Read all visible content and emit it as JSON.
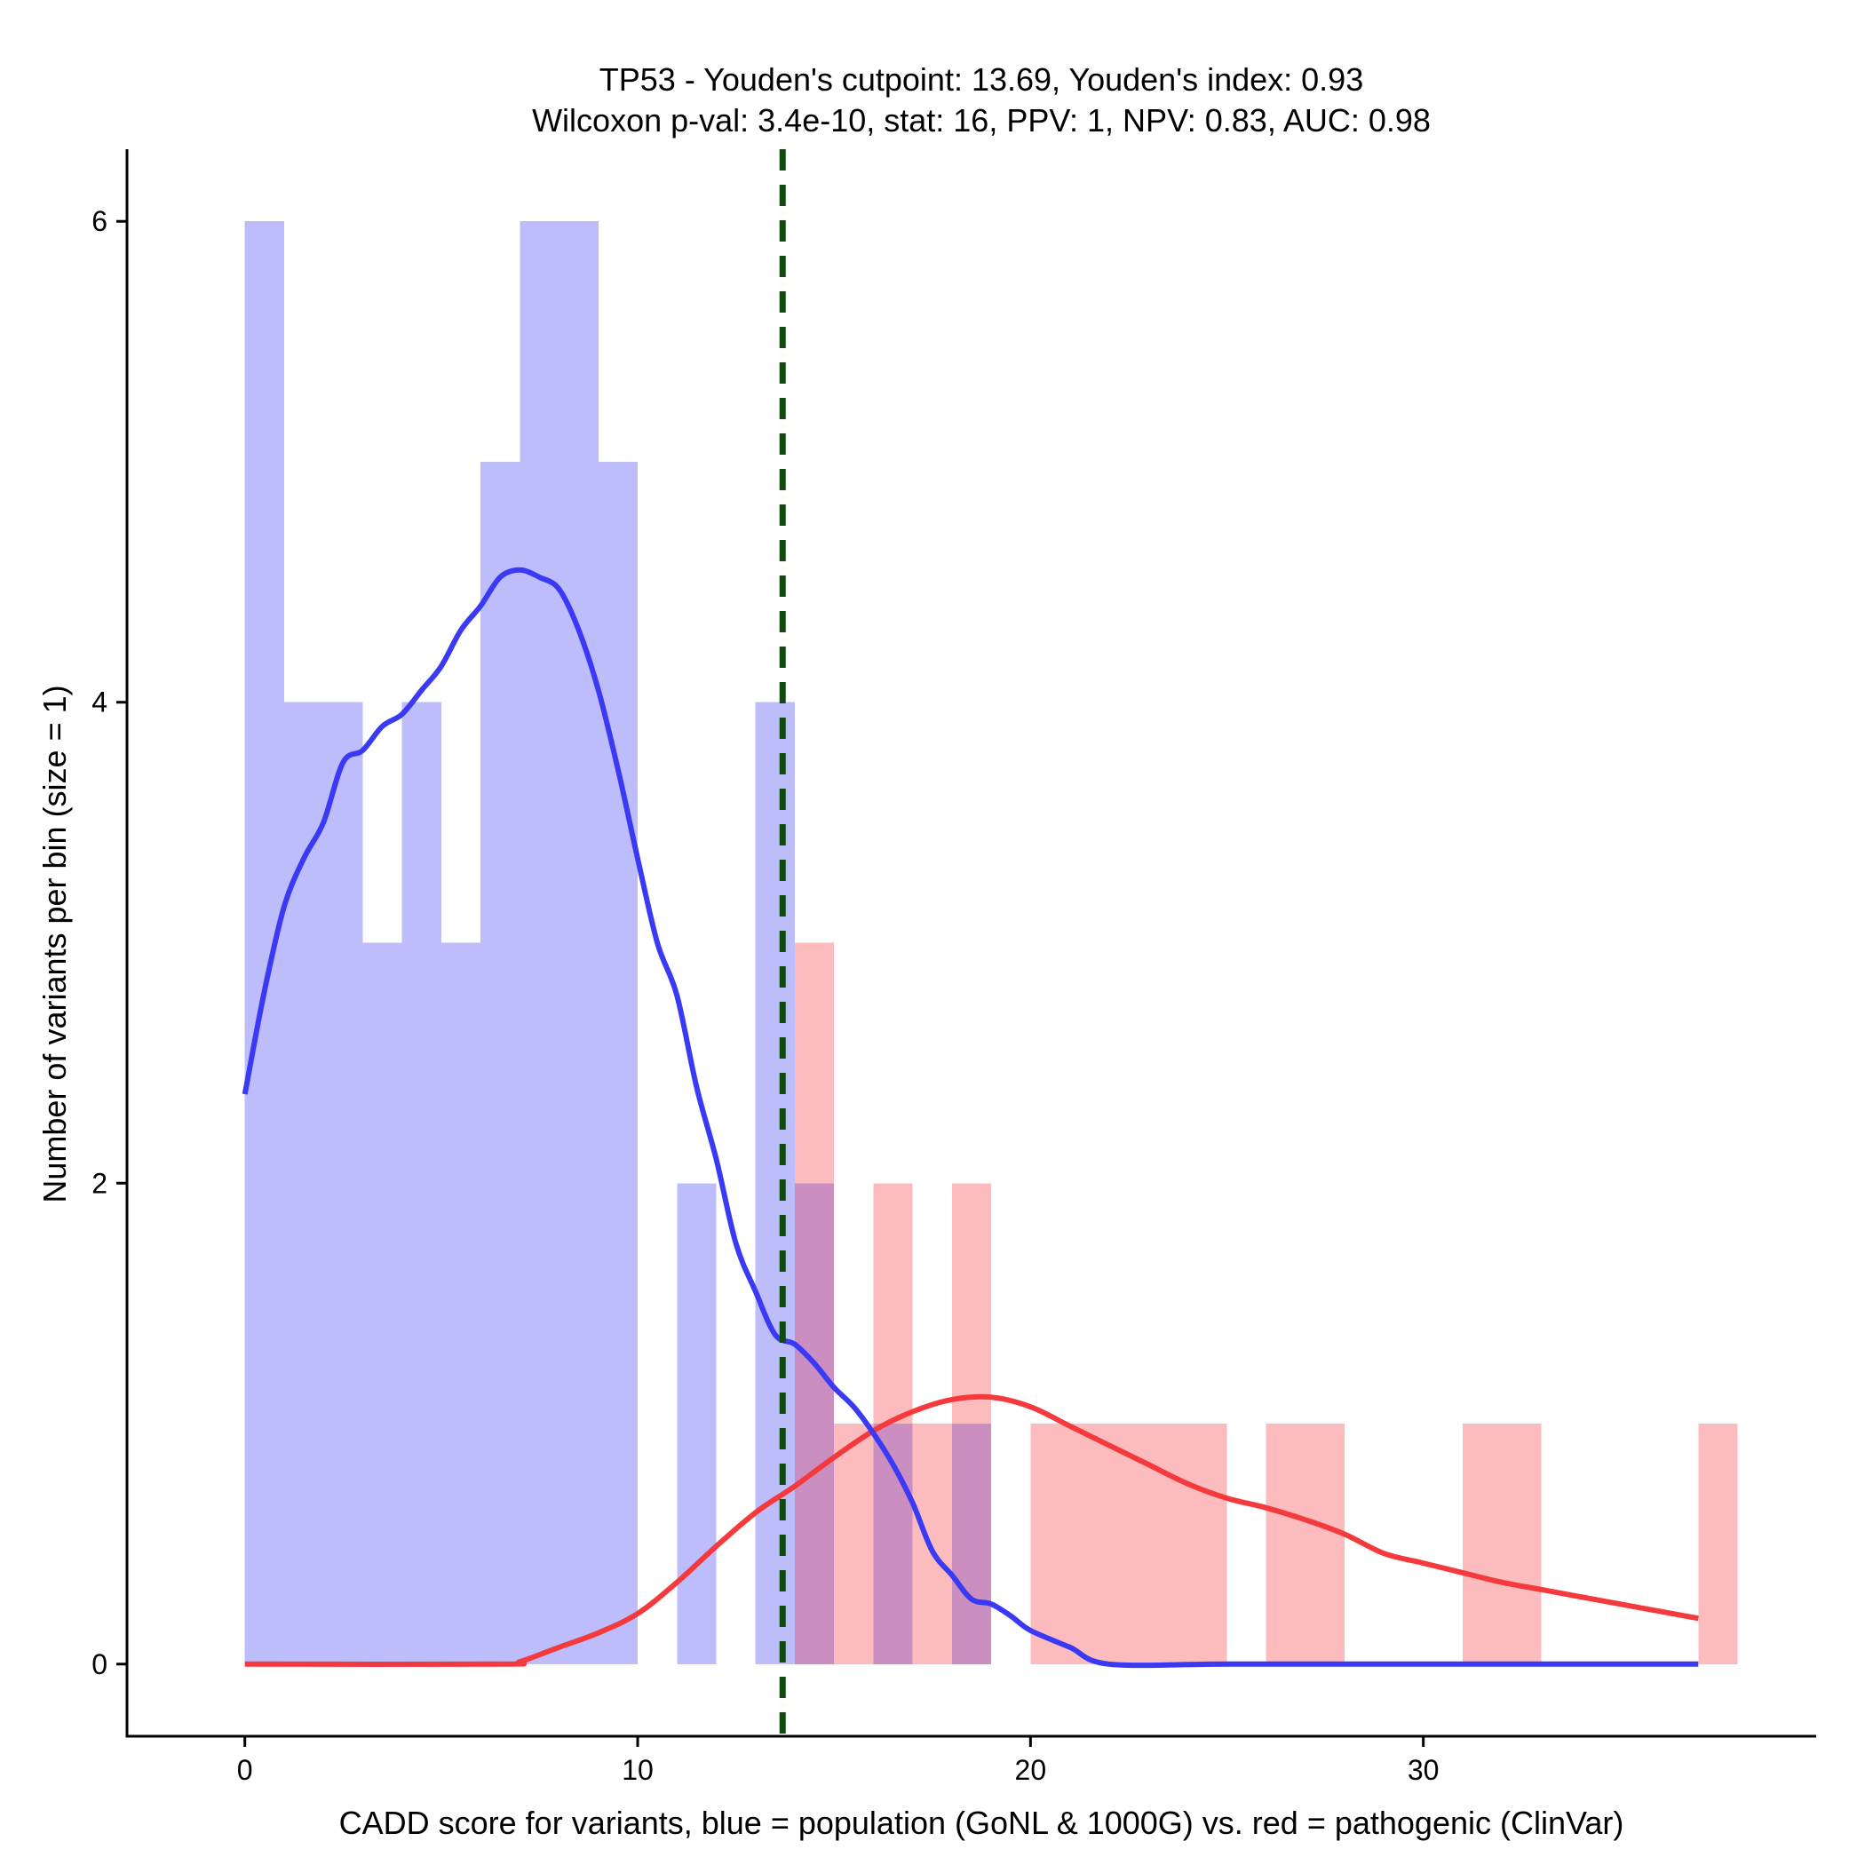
{
  "colors": {
    "population_fill": "#bdbdfb",
    "pathogenic_fill": "#fcbcbd",
    "overlap_fill": "#cb8ec1",
    "population_line": "#3a3af5",
    "pathogenic_line": "#f53a3d",
    "cutpoint_line": "#0f4b0f",
    "axis": "#000000"
  },
  "chart_data": {
    "type": "histogram",
    "title_line1": "TP53 - Youden's cutpoint: 13.69, Youden's index: 0.93",
    "title_line2": "Wilcoxon p-val: 3.4e-10, stat: 16, PPV: 1, NPV: 0.83, AUC: 0.98",
    "xlabel": "CADD score for variants, blue = population (GoNL & 1000G) vs. red = pathogenic (ClinVar)",
    "ylabel": "Number of variants per bin (size = 1)",
    "xlim": [
      -3,
      40
    ],
    "ylim": [
      -0.3,
      6.3
    ],
    "xticks": [
      0,
      10,
      20,
      30
    ],
    "yticks": [
      0,
      2,
      4,
      6
    ],
    "bin_size": 1,
    "cutpoint": 13.69,
    "series": [
      {
        "name": "population (GoNL & 1000G)",
        "bins": [
          {
            "x0": 0,
            "x1": 1,
            "count": 6
          },
          {
            "x0": 1,
            "x1": 2,
            "count": 4
          },
          {
            "x0": 2,
            "x1": 3,
            "count": 4
          },
          {
            "x0": 3,
            "x1": 4,
            "count": 3
          },
          {
            "x0": 4,
            "x1": 5,
            "count": 4
          },
          {
            "x0": 5,
            "x1": 6,
            "count": 3
          },
          {
            "x0": 6,
            "x1": 7,
            "count": 5
          },
          {
            "x0": 7,
            "x1": 8,
            "count": 6
          },
          {
            "x0": 8,
            "x1": 9,
            "count": 6
          },
          {
            "x0": 9,
            "x1": 10,
            "count": 5
          },
          {
            "x0": 11,
            "x1": 12,
            "count": 2
          },
          {
            "x0": 13,
            "x1": 14,
            "count": 4
          },
          {
            "x0": 14,
            "x1": 15,
            "count": 2
          },
          {
            "x0": 16,
            "x1": 17,
            "count": 1
          },
          {
            "x0": 18,
            "x1": 19,
            "count": 1
          }
        ],
        "density": [
          [
            0,
            2.37
          ],
          [
            0.5,
            2.8
          ],
          [
            1,
            3.15
          ],
          [
            1.5,
            3.35
          ],
          [
            2,
            3.5
          ],
          [
            2.5,
            3.75
          ],
          [
            3,
            3.8
          ],
          [
            3.5,
            3.9
          ],
          [
            4,
            3.95
          ],
          [
            4.5,
            4.05
          ],
          [
            5,
            4.15
          ],
          [
            5.5,
            4.3
          ],
          [
            6,
            4.4
          ],
          [
            6.5,
            4.52
          ],
          [
            7,
            4.55
          ],
          [
            7.5,
            4.52
          ],
          [
            8,
            4.47
          ],
          [
            8.5,
            4.3
          ],
          [
            9,
            4.05
          ],
          [
            9.5,
            3.72
          ],
          [
            10,
            3.35
          ],
          [
            10.5,
            3.0
          ],
          [
            11,
            2.78
          ],
          [
            11.5,
            2.4
          ],
          [
            12,
            2.1
          ],
          [
            12.5,
            1.75
          ],
          [
            13,
            1.55
          ],
          [
            13.5,
            1.37
          ],
          [
            14,
            1.33
          ],
          [
            14.5,
            1.25
          ],
          [
            15,
            1.15
          ],
          [
            15.5,
            1.07
          ],
          [
            16,
            0.96
          ],
          [
            16.5,
            0.83
          ],
          [
            17,
            0.67
          ],
          [
            17.5,
            0.47
          ],
          [
            18,
            0.37
          ],
          [
            18.5,
            0.27
          ],
          [
            19,
            0.25
          ],
          [
            19.5,
            0.2
          ],
          [
            20,
            0.14
          ],
          [
            21,
            0.07
          ],
          [
            22,
            0.0
          ],
          [
            25,
            0.0
          ],
          [
            30,
            0.0
          ],
          [
            37,
            0.0
          ]
        ]
      },
      {
        "name": "pathogenic (ClinVar)",
        "bins": [
          {
            "x0": 14,
            "x1": 15,
            "count": 3
          },
          {
            "x0": 15,
            "x1": 16,
            "count": 1
          },
          {
            "x0": 16,
            "x1": 17,
            "count": 2
          },
          {
            "x0": 17,
            "x1": 18,
            "count": 1
          },
          {
            "x0": 18,
            "x1": 19,
            "count": 2
          },
          {
            "x0": 20,
            "x1": 21,
            "count": 1
          },
          {
            "x0": 21,
            "x1": 22,
            "count": 1
          },
          {
            "x0": 22,
            "x1": 23,
            "count": 1
          },
          {
            "x0": 23,
            "x1": 24,
            "count": 1
          },
          {
            "x0": 24,
            "x1": 25,
            "count": 1
          },
          {
            "x0": 26,
            "x1": 27,
            "count": 1
          },
          {
            "x0": 27,
            "x1": 28,
            "count": 1
          },
          {
            "x0": 31,
            "x1": 32,
            "count": 1
          },
          {
            "x0": 32,
            "x1": 33,
            "count": 1
          },
          {
            "x0": 37,
            "x1": 38,
            "count": 1
          }
        ],
        "density": [
          [
            0,
            0.0
          ],
          [
            6.5,
            0.0
          ],
          [
            7,
            0.01
          ],
          [
            8,
            0.07
          ],
          [
            9,
            0.13
          ],
          [
            10,
            0.21
          ],
          [
            11,
            0.34
          ],
          [
            12,
            0.49
          ],
          [
            13,
            0.63
          ],
          [
            14,
            0.74
          ],
          [
            15,
            0.86
          ],
          [
            16,
            0.97
          ],
          [
            17,
            1.05
          ],
          [
            18,
            1.1
          ],
          [
            19,
            1.11
          ],
          [
            20,
            1.07
          ],
          [
            21,
            0.99
          ],
          [
            22,
            0.91
          ],
          [
            23,
            0.83
          ],
          [
            24,
            0.75
          ],
          [
            25,
            0.69
          ],
          [
            26,
            0.65
          ],
          [
            27,
            0.6
          ],
          [
            28,
            0.54
          ],
          [
            29,
            0.46
          ],
          [
            30,
            0.42
          ],
          [
            31,
            0.38
          ],
          [
            32,
            0.34
          ],
          [
            33,
            0.31
          ],
          [
            34,
            0.28
          ],
          [
            35,
            0.25
          ],
          [
            36,
            0.22
          ],
          [
            37,
            0.19
          ]
        ]
      }
    ]
  }
}
